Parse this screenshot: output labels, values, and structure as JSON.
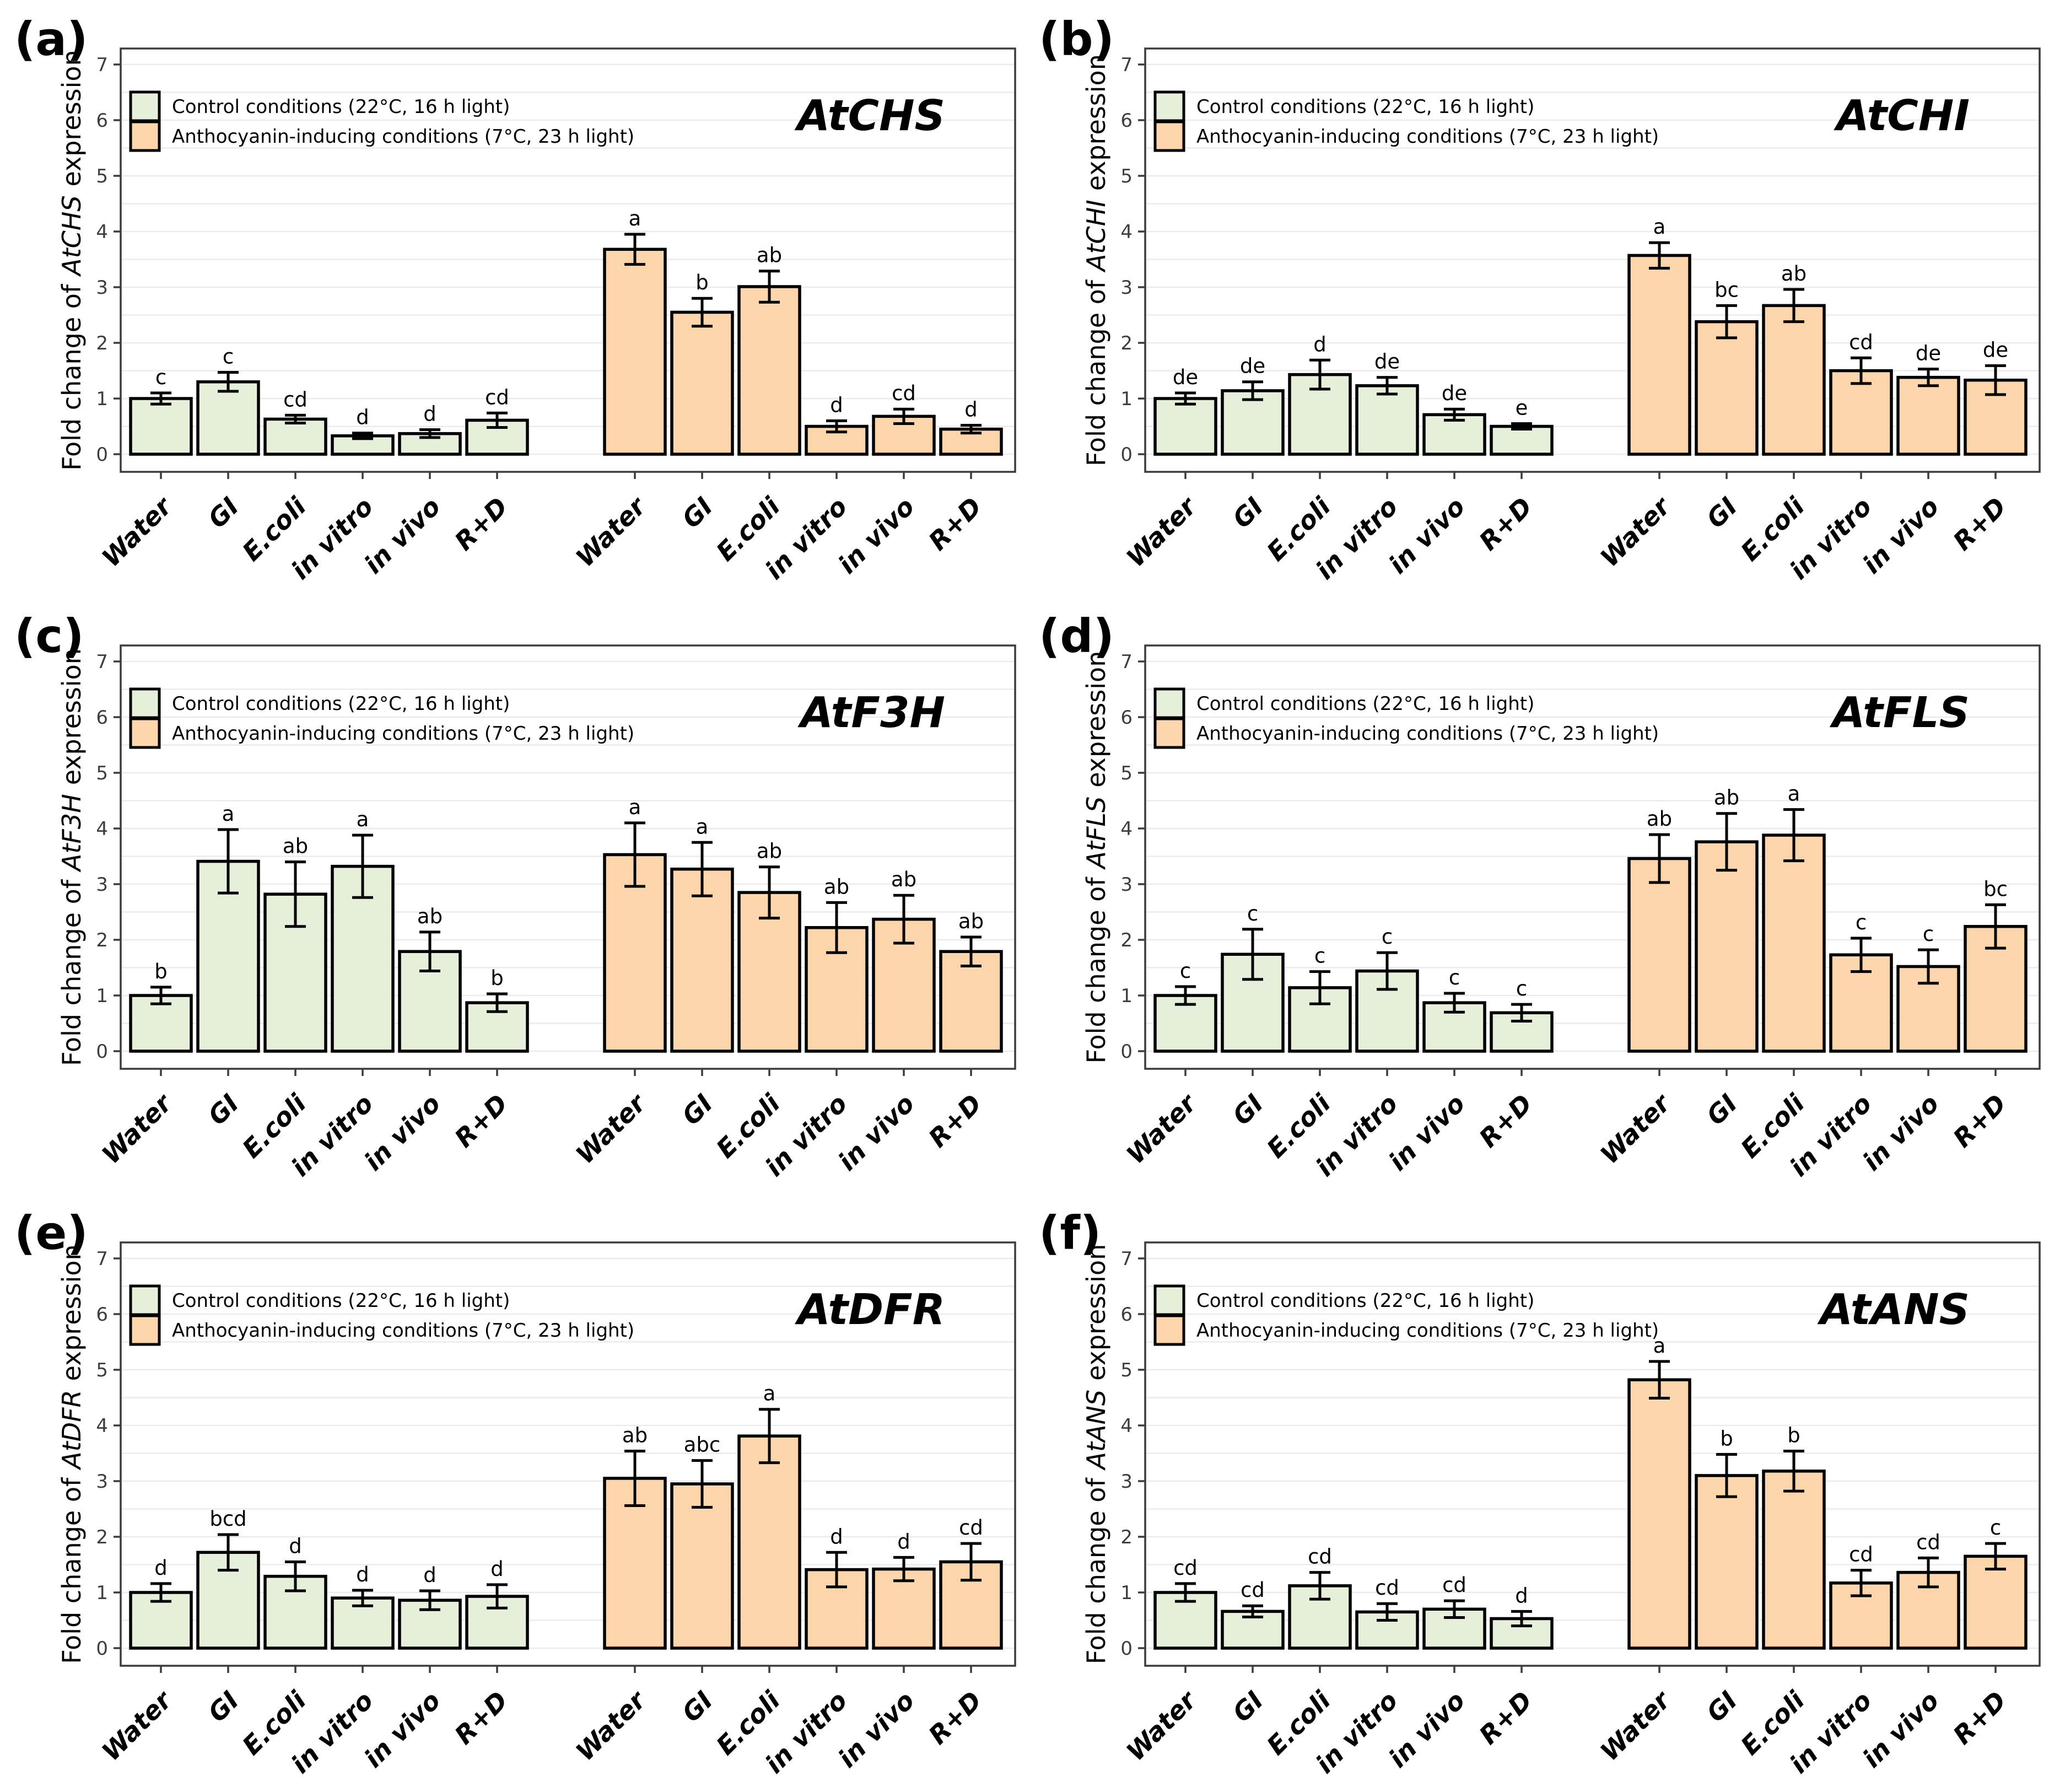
{
  "figure": {
    "description": "Six-panel bar chart figure of anthocyanin biosynthesis gene expression",
    "categories": [
      "Water",
      "GI",
      "E.coli",
      "in vitro",
      "in vivo",
      "R+D"
    ],
    "ylabel_prefix": "Fold change of",
    "ylabel_suffix": "expression",
    "legend": {
      "control_label": "Control conditions (22°C, 16 h light)",
      "induced_label": "Anthocyanin-inducing conditions (7°C, 23 h light)"
    },
    "colors": {
      "control_fill": "#e6efd9",
      "induced_fill": "#fdd5ab",
      "bar_border": "#000000",
      "gridline": "#ebebeb",
      "frame": "#3c3c3c",
      "tick_text": "#3d3d3d",
      "text": "#000000"
    }
  },
  "chart_data": [
    {
      "type": "bar",
      "panel_label": "(a)",
      "title": "AtCHS",
      "ylabel": "Fold change of AtCHS expression",
      "categories": [
        "Water",
        "GI",
        "E.coli",
        "in vitro",
        "in vivo",
        "R+D"
      ],
      "ylim": [
        0,
        7
      ],
      "yticks": [
        0,
        1,
        2,
        3,
        4,
        5,
        6,
        7
      ],
      "grid_step": 0.5,
      "legend_position": "upper left",
      "series": [
        {
          "name": "Control conditions (22°C, 16 h light)",
          "values": [
            1.0,
            1.3,
            0.63,
            0.33,
            0.37,
            0.61
          ],
          "errors": [
            0.1,
            0.17,
            0.07,
            0.05,
            0.07,
            0.13
          ],
          "sig_letters": [
            "c",
            "c",
            "cd",
            "d",
            "d",
            "cd"
          ]
        },
        {
          "name": "Anthocyanin-inducing conditions (7°C, 23 h light)",
          "values": [
            3.68,
            2.55,
            3.01,
            0.5,
            0.68,
            0.45
          ],
          "errors": [
            0.27,
            0.25,
            0.28,
            0.1,
            0.13,
            0.07
          ],
          "sig_letters": [
            "a",
            "b",
            "ab",
            "d",
            "cd",
            "d"
          ]
        }
      ]
    },
    {
      "type": "bar",
      "panel_label": "(b)",
      "title": "AtCHI",
      "ylabel": "Fold change of AtCHI expression",
      "categories": [
        "Water",
        "GI",
        "E.coli",
        "in vitro",
        "in vivo",
        "R+D"
      ],
      "ylim": [
        0,
        7
      ],
      "yticks": [
        0,
        1,
        2,
        3,
        4,
        5,
        6,
        7
      ],
      "grid_step": 0.5,
      "legend_position": "upper left",
      "series": [
        {
          "name": "Control conditions (22°C, 16 h light)",
          "values": [
            1.0,
            1.14,
            1.43,
            1.23,
            0.71,
            0.5
          ],
          "errors": [
            0.1,
            0.16,
            0.26,
            0.15,
            0.1,
            0.05
          ],
          "sig_letters": [
            "de",
            "de",
            "d",
            "de",
            "de",
            "e"
          ]
        },
        {
          "name": "Anthocyanin-inducing conditions (7°C, 23 h light)",
          "values": [
            3.57,
            2.38,
            2.67,
            1.5,
            1.38,
            1.33
          ],
          "errors": [
            0.23,
            0.29,
            0.29,
            0.23,
            0.15,
            0.26
          ],
          "sig_letters": [
            "a",
            "bc",
            "ab",
            "cd",
            "de",
            "de"
          ]
        }
      ]
    },
    {
      "type": "bar",
      "panel_label": "(c)",
      "title": "AtF3H",
      "ylabel": "Fold change of AtF3H expression",
      "categories": [
        "Water",
        "GI",
        "E.coli",
        "in vitro",
        "in vivo",
        "R+D"
      ],
      "ylim": [
        0,
        7
      ],
      "yticks": [
        0,
        1,
        2,
        3,
        4,
        5,
        6,
        7
      ],
      "grid_step": 0.5,
      "legend_position": "upper left",
      "series": [
        {
          "name": "Control conditions (22°C, 16 h light)",
          "values": [
            1.0,
            3.41,
            2.82,
            3.32,
            1.79,
            0.87
          ],
          "errors": [
            0.15,
            0.57,
            0.58,
            0.56,
            0.35,
            0.16
          ],
          "sig_letters": [
            "b",
            "a",
            "ab",
            "a",
            "ab",
            "b"
          ]
        },
        {
          "name": "Anthocyanin-inducing conditions (7°C, 23 h light)",
          "values": [
            3.53,
            3.27,
            2.85,
            2.22,
            2.37,
            1.79
          ],
          "errors": [
            0.57,
            0.48,
            0.46,
            0.45,
            0.43,
            0.26
          ],
          "sig_letters": [
            "a",
            "a",
            "ab",
            "ab",
            "ab",
            "ab"
          ]
        }
      ]
    },
    {
      "type": "bar",
      "panel_label": "(d)",
      "title": "AtFLS",
      "ylabel": "Fold change of AtFLS expression",
      "categories": [
        "Water",
        "GI",
        "E.coli",
        "in vitro",
        "in vivo",
        "R+D"
      ],
      "ylim": [
        0,
        7
      ],
      "yticks": [
        0,
        1,
        2,
        3,
        4,
        5,
        6,
        7
      ],
      "grid_step": 0.5,
      "legend_position": "upper left",
      "series": [
        {
          "name": "Control conditions (22°C, 16 h light)",
          "values": [
            1.0,
            1.74,
            1.14,
            1.44,
            0.87,
            0.69
          ],
          "errors": [
            0.16,
            0.45,
            0.29,
            0.33,
            0.17,
            0.15
          ],
          "sig_letters": [
            "c",
            "c",
            "c",
            "c",
            "c",
            "c"
          ]
        },
        {
          "name": "Anthocyanin-inducing conditions (7°C, 23 h light)",
          "values": [
            3.46,
            3.76,
            3.88,
            1.73,
            1.52,
            2.24
          ],
          "errors": [
            0.43,
            0.51,
            0.46,
            0.3,
            0.3,
            0.39
          ],
          "sig_letters": [
            "ab",
            "ab",
            "a",
            "c",
            "c",
            "bc"
          ]
        }
      ]
    },
    {
      "type": "bar",
      "panel_label": "(e)",
      "title": "AtDFR",
      "ylabel": "Fold change of AtDFR expression",
      "categories": [
        "Water",
        "GI",
        "E.coli",
        "in vitro",
        "in vivo",
        "R+D"
      ],
      "ylim": [
        0,
        7
      ],
      "yticks": [
        0,
        1,
        2,
        3,
        4,
        5,
        6,
        7
      ],
      "grid_step": 0.5,
      "legend_position": "upper left",
      "series": [
        {
          "name": "Control conditions (22°C, 16 h light)",
          "values": [
            1.0,
            1.72,
            1.29,
            0.9,
            0.86,
            0.93
          ],
          "errors": [
            0.16,
            0.32,
            0.26,
            0.14,
            0.17,
            0.21
          ],
          "sig_letters": [
            "d",
            "bcd",
            "d",
            "d",
            "d",
            "d"
          ]
        },
        {
          "name": "Anthocyanin-inducing conditions (7°C, 23 h light)",
          "values": [
            3.05,
            2.95,
            3.81,
            1.41,
            1.42,
            1.55
          ],
          "errors": [
            0.49,
            0.42,
            0.48,
            0.31,
            0.21,
            0.33
          ],
          "sig_letters": [
            "ab",
            "abc",
            "a",
            "d",
            "d",
            "cd"
          ]
        }
      ]
    },
    {
      "type": "bar",
      "panel_label": "(f)",
      "title": "AtANS",
      "ylabel": "Fold change of AtANS expression",
      "categories": [
        "Water",
        "GI",
        "E.coli",
        "in vitro",
        "in vivo",
        "R+D"
      ],
      "ylim": [
        0,
        7
      ],
      "yticks": [
        0,
        1,
        2,
        3,
        4,
        5,
        6,
        7
      ],
      "grid_step": 0.5,
      "legend_position": "upper left",
      "series": [
        {
          "name": "Control conditions (22°C, 16 h light)",
          "values": [
            1.0,
            0.66,
            1.12,
            0.65,
            0.7,
            0.53
          ],
          "errors": [
            0.16,
            0.1,
            0.24,
            0.15,
            0.15,
            0.13
          ],
          "sig_letters": [
            "cd",
            "cd",
            "cd",
            "cd",
            "cd",
            "d"
          ]
        },
        {
          "name": "Anthocyanin-inducing conditions (7°C, 23 h light)",
          "values": [
            4.82,
            3.1,
            3.18,
            1.17,
            1.36,
            1.65
          ],
          "errors": [
            0.33,
            0.38,
            0.36,
            0.23,
            0.26,
            0.23
          ],
          "sig_letters": [
            "a",
            "b",
            "b",
            "cd",
            "cd",
            "c"
          ]
        }
      ]
    }
  ]
}
